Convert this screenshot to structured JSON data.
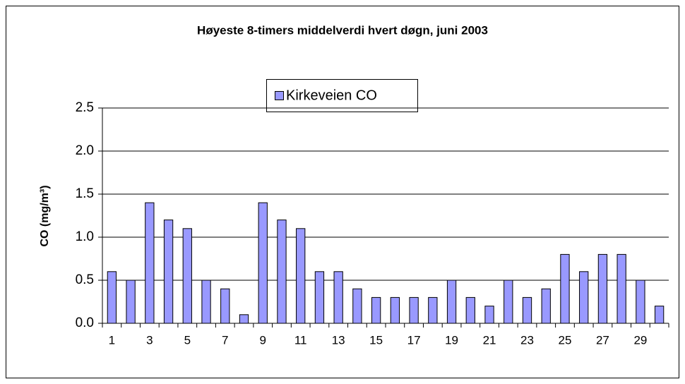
{
  "chart_data": {
    "type": "bar",
    "title": "Høyeste 8-timers middelverdi hvert døgn, juni 2003",
    "y_label": "CO (mg/m³)",
    "categories": [
      "1",
      null,
      "3",
      null,
      "5",
      null,
      "7",
      null,
      "9",
      null,
      "11",
      null,
      "13",
      null,
      "15",
      null,
      "17",
      null,
      "19",
      null,
      "21",
      null,
      "23",
      null,
      "25",
      null,
      "27",
      null,
      "29",
      null
    ],
    "series": [
      {
        "name": "Kirkeveien CO",
        "color": "#9999ff",
        "values": [
          0.6,
          0.5,
          1.4,
          1.2,
          1.1,
          0.5,
          0.4,
          0.1,
          1.4,
          1.2,
          1.1,
          0.6,
          0.6,
          0.4,
          0.3,
          0.3,
          0.3,
          0.3,
          0.5,
          0.3,
          0.2,
          0.5,
          0.3,
          0.4,
          0.8,
          0.6,
          0.8,
          0.8,
          0.5,
          0.2
        ]
      }
    ],
    "ylim": [
      0,
      2.5
    ],
    "yticks": [
      {
        "value": 0,
        "label": "0.0"
      },
      0.5,
      {
        "value": 1,
        "label": "1.0"
      },
      1.5,
      {
        "value": 2,
        "label": "2.0"
      },
      2.5
    ],
    "grid": true,
    "legend": "top"
  }
}
